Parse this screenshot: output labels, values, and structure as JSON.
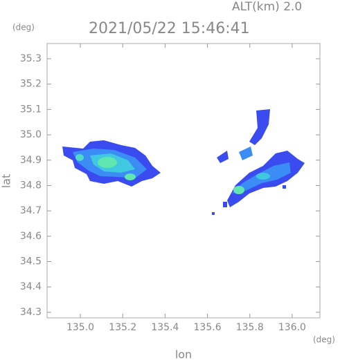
{
  "chart_data": {
    "type": "map",
    "title": "2021/05/22 15:46:41",
    "subtitle": "ALT(km)  2.0",
    "x_label": "lon",
    "y_label": "lat",
    "x_unit": "(deg)",
    "y_unit": "(deg)",
    "xlim": [
      134.843,
      136.131
    ],
    "ylim": [
      34.278,
      35.36
    ],
    "xticks": [
      {
        "value": 135,
        "label": "135.0"
      },
      135.2,
      135.4,
      135.6,
      135.8,
      {
        "value": 136,
        "label": "136.0"
      }
    ],
    "yticks": [
      34.3,
      34.4,
      34.5,
      34.6,
      34.7,
      34.8,
      34.9,
      {
        "value": 35,
        "label": "35.0"
      },
      35.1,
      35.2,
      35.3
    ]
  }
}
